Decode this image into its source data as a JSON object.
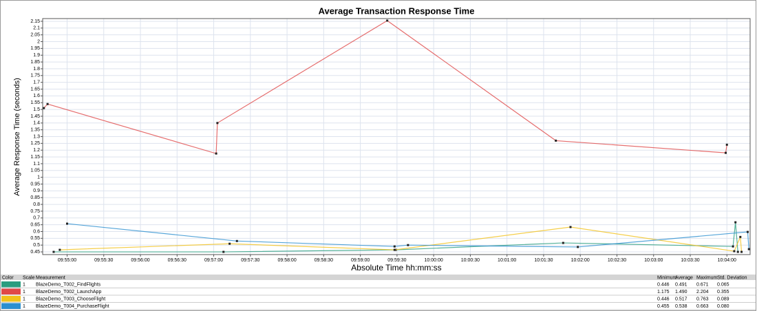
{
  "chart_data": {
    "type": "line",
    "title": "Average Transaction Response Time",
    "xlabel": "Absolute Time hh:mm:ss",
    "ylabel": "Average Response Time (seconds)",
    "xlim": [
      "09:54:40",
      "10:04:19"
    ],
    "xticks": [
      "09:55:00",
      "09:55:30",
      "09:56:00",
      "09:56:30",
      "09:57:00",
      "09:57:30",
      "09:58:00",
      "09:58:30",
      "09:59:00",
      "09:59:30",
      "10:00:00",
      "10:00:30",
      "10:01:00",
      "10:01:30",
      "10:02:00",
      "10:02:30",
      "10:03:00",
      "10:03:30",
      "10:04:00"
    ],
    "ylim": [
      0.43,
      2.17
    ],
    "yticks": [
      0.45,
      0.5,
      0.55,
      0.6,
      0.65,
      0.7,
      0.75,
      0.8,
      0.85,
      0.9,
      0.95,
      1,
      1.05,
      1.1,
      1.15,
      1.2,
      1.25,
      1.3,
      1.35,
      1.4,
      1.45,
      1.5,
      1.55,
      1.6,
      1.65,
      1.7,
      1.75,
      1.8,
      1.85,
      1.9,
      1.95,
      2,
      2.05,
      2.1,
      2.15
    ],
    "grid": true,
    "series": [
      {
        "name": "BlazeDemo_T002_FindFlights",
        "color": "#2a9d7f",
        "x": [
          "09:54:49",
          "09:57:08",
          "09:59:29",
          "10:01:46",
          "10:04:05",
          "10:04:07",
          "10:04:09"
        ],
        "values": [
          0.45,
          0.45,
          0.465,
          0.516,
          0.49,
          0.668,
          0.45
        ]
      },
      {
        "name": "BlazeDemo_T002_LaunchApp",
        "color": "#e04848",
        "x": [
          "09:54:41",
          "09:54:44",
          "09:57:02",
          "09:57:03",
          "09:59:22",
          "10:01:40",
          "10:03:59",
          "10:04:00"
        ],
        "values": [
          1.51,
          1.54,
          1.175,
          1.4,
          2.155,
          1.27,
          1.18,
          1.24
        ]
      },
      {
        "name": "BlazeDemo_T003_ChooseFlight",
        "color": "#f2c21b",
        "x": [
          "09:54:54",
          "09:57:13",
          "09:59:28",
          "10:01:52",
          "10:04:06",
          "10:04:11",
          "10:04:12"
        ],
        "values": [
          0.465,
          0.51,
          0.465,
          0.633,
          0.455,
          0.56,
          0.45
        ]
      },
      {
        "name": "BlazeDemo_T004_PurchaseFlight",
        "color": "#2b8fd0",
        "x": [
          "09:55:00",
          "09:57:19",
          "09:59:28",
          "09:59:39",
          "10:01:58",
          "10:04:17",
          "10:04:18"
        ],
        "values": [
          0.658,
          0.53,
          0.49,
          0.5,
          0.486,
          0.597,
          0.47
        ]
      }
    ]
  },
  "table": {
    "headers": [
      "Color",
      "Scale",
      "Measurement",
      "Minimum",
      "Average",
      "Maximum",
      "Std. Deviation"
    ],
    "rows": [
      {
        "scale": "1",
        "stats": [
          "0.446",
          "0.491",
          "0.671",
          "0.065"
        ]
      },
      {
        "scale": "1",
        "stats": [
          "1.175",
          "1.490",
          "2.204",
          "0.355"
        ]
      },
      {
        "scale": "1",
        "stats": [
          "0.446",
          "0.517",
          "0.763",
          "0.089"
        ]
      },
      {
        "scale": "1",
        "stats": [
          "0.455",
          "0.538",
          "0.663",
          "0.080"
        ]
      }
    ]
  }
}
